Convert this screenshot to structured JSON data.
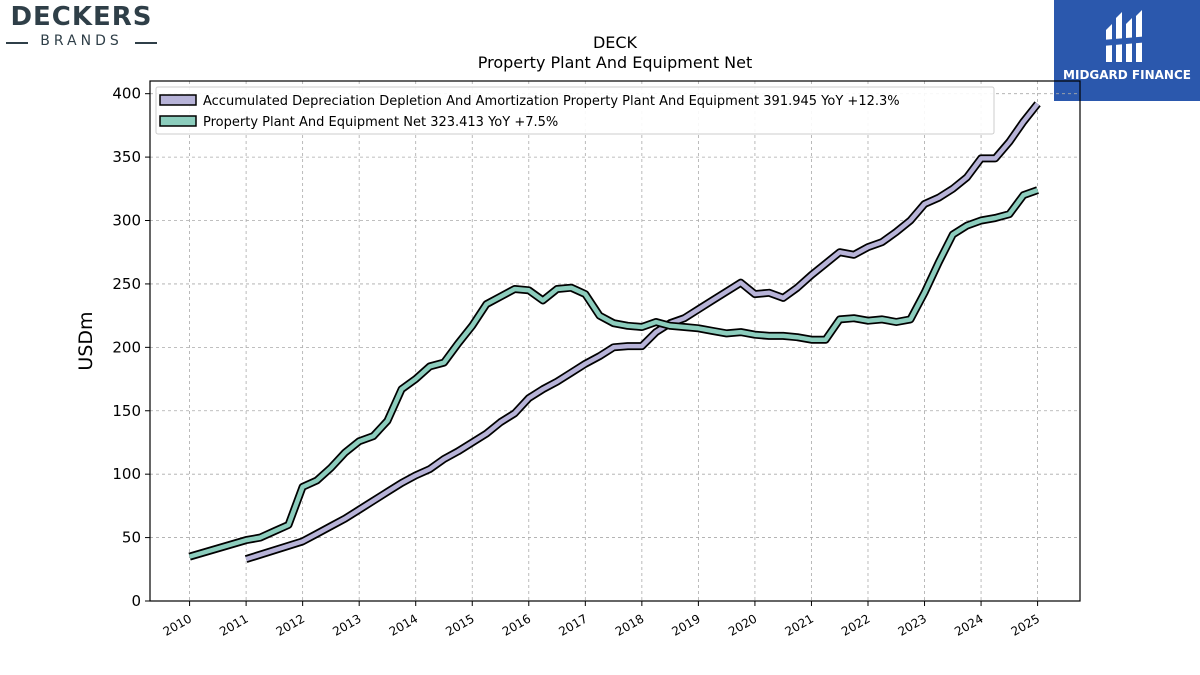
{
  "logos": {
    "left": {
      "name": "DECKERS",
      "sub": "BRANDS"
    },
    "right": {
      "name": "MIDGARD FINANCE"
    }
  },
  "colors": {
    "accumulated_depreciation": "#b7b3d8",
    "ppe_net": "#8ccdbd",
    "outline": "#000000",
    "grid": "#aaaaaa",
    "midgard_blue": "#2b58ad"
  },
  "chart_data": {
    "type": "line",
    "title": "DECK",
    "subtitle": "Property Plant And Equipment Net",
    "xlabel": "",
    "ylabel": "USDm",
    "ylim": [
      0,
      410
    ],
    "xlim": [
      2009.3,
      2025.75
    ],
    "yticks": [
      0,
      50,
      100,
      150,
      200,
      250,
      300,
      350,
      400
    ],
    "xticks": [
      "2010",
      "2011",
      "2012",
      "2013",
      "2014",
      "2015",
      "2016",
      "2017",
      "2018",
      "2019",
      "2020",
      "2021",
      "2022",
      "2023",
      "2024",
      "2025"
    ],
    "grid": true,
    "legend_position": "top-left",
    "series": [
      {
        "name": "Accumulated Depreciation Depletion And Amortization Property Plant And Equipment",
        "legend_label": "Accumulated Depreciation Depletion And Amortization Property Plant And Equipment  391.945 YoY +12.3%",
        "x": [
          2011.0,
          2012.0,
          2012.25,
          2012.5,
          2012.75,
          2013.0,
          2013.25,
          2013.5,
          2013.75,
          2014.0,
          2014.25,
          2014.5,
          2014.75,
          2015.0,
          2015.25,
          2015.5,
          2015.75,
          2016.0,
          2016.25,
          2016.5,
          2016.75,
          2017.0,
          2017.25,
          2017.5,
          2017.75,
          2018.0,
          2018.25,
          2018.5,
          2018.75,
          2019.0,
          2019.25,
          2019.5,
          2019.75,
          2020.0,
          2020.25,
          2020.5,
          2020.75,
          2021.0,
          2021.25,
          2021.5,
          2021.75,
          2022.0,
          2022.25,
          2022.5,
          2022.75,
          2023.0,
          2023.25,
          2023.5,
          2023.75,
          2024.0,
          2024.25,
          2024.5,
          2024.75,
          2025.0
        ],
        "y": [
          33,
          47,
          53,
          59,
          65,
          72,
          79,
          86,
          93,
          99,
          104,
          112,
          118,
          125,
          132,
          141,
          148,
          160,
          167,
          173,
          180,
          187,
          193,
          200,
          201,
          201,
          212,
          219,
          223,
          230,
          237,
          244,
          251,
          242,
          243,
          239,
          247,
          257,
          266,
          275,
          273,
          279,
          283,
          291,
          300,
          313,
          318,
          325,
          334,
          349,
          349,
          362,
          378,
          392
        ]
      },
      {
        "name": "Property Plant And Equipment Net",
        "legend_label": "Property Plant And Equipment Net  323.413 YoY +7.5%",
        "x": [
          2010.0,
          2011.0,
          2011.25,
          2011.5,
          2011.75,
          2012.0,
          2012.25,
          2012.5,
          2012.75,
          2013.0,
          2013.25,
          2013.5,
          2013.75,
          2014.0,
          2014.25,
          2014.5,
          2014.75,
          2015.0,
          2015.25,
          2015.5,
          2015.75,
          2016.0,
          2016.25,
          2016.5,
          2016.75,
          2017.0,
          2017.25,
          2017.5,
          2017.75,
          2018.0,
          2018.25,
          2018.5,
          2018.75,
          2019.0,
          2019.25,
          2019.5,
          2019.75,
          2020.0,
          2020.25,
          2020.5,
          2020.75,
          2021.0,
          2021.25,
          2021.5,
          2021.75,
          2022.0,
          2022.25,
          2022.5,
          2022.75,
          2023.0,
          2023.25,
          2023.5,
          2023.75,
          2024.0,
          2024.25,
          2024.5,
          2024.75,
          2025.0
        ],
        "y": [
          35,
          48,
          50,
          55,
          60,
          90,
          95,
          105,
          117,
          126,
          130,
          142,
          167,
          175,
          185,
          188,
          203,
          217,
          234,
          240,
          246,
          245,
          237,
          246,
          247,
          242,
          225,
          219,
          217,
          216,
          220,
          217,
          216,
          215,
          213,
          211,
          212,
          210,
          209,
          209,
          208,
          206,
          206,
          222,
          223,
          221,
          222,
          220,
          222,
          243,
          267,
          289,
          296,
          300,
          302,
          305,
          320,
          324
        ]
      }
    ]
  }
}
